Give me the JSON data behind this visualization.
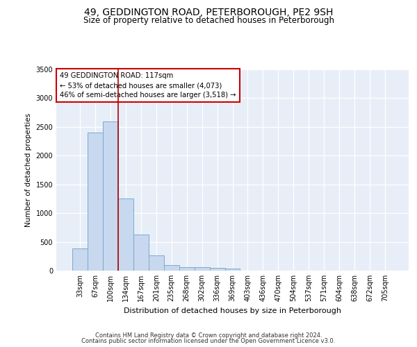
{
  "title": "49, GEDDINGTON ROAD, PETERBOROUGH, PE2 9SH",
  "subtitle": "Size of property relative to detached houses in Peterborough",
  "xlabel": "Distribution of detached houses by size in Peterborough",
  "ylabel": "Number of detached properties",
  "categories": [
    "33sqm",
    "67sqm",
    "100sqm",
    "134sqm",
    "167sqm",
    "201sqm",
    "235sqm",
    "268sqm",
    "302sqm",
    "336sqm",
    "369sqm",
    "403sqm",
    "436sqm",
    "470sqm",
    "504sqm",
    "537sqm",
    "571sqm",
    "604sqm",
    "638sqm",
    "672sqm",
    "705sqm"
  ],
  "values": [
    390,
    2400,
    2600,
    1250,
    630,
    270,
    100,
    60,
    55,
    50,
    40,
    0,
    0,
    0,
    0,
    0,
    0,
    0,
    0,
    0,
    0
  ],
  "bar_color": "#c8d8ee",
  "bar_edge_color": "#7aaad0",
  "vline_color": "#aa0000",
  "annotation_text": "49 GEDDINGTON ROAD: 117sqm\n← 53% of detached houses are smaller (4,073)\n46% of semi-detached houses are larger (3,518) →",
  "annotation_box_color": "white",
  "annotation_box_edge": "#cc0000",
  "ylim": [
    0,
    3500
  ],
  "yticks": [
    0,
    500,
    1000,
    1500,
    2000,
    2500,
    3000,
    3500
  ],
  "background_color": "#e8eef8",
  "grid_color": "#ffffff",
  "footer_line1": "Contains HM Land Registry data © Crown copyright and database right 2024.",
  "footer_line2": "Contains public sector information licensed under the Open Government Licence v3.0."
}
